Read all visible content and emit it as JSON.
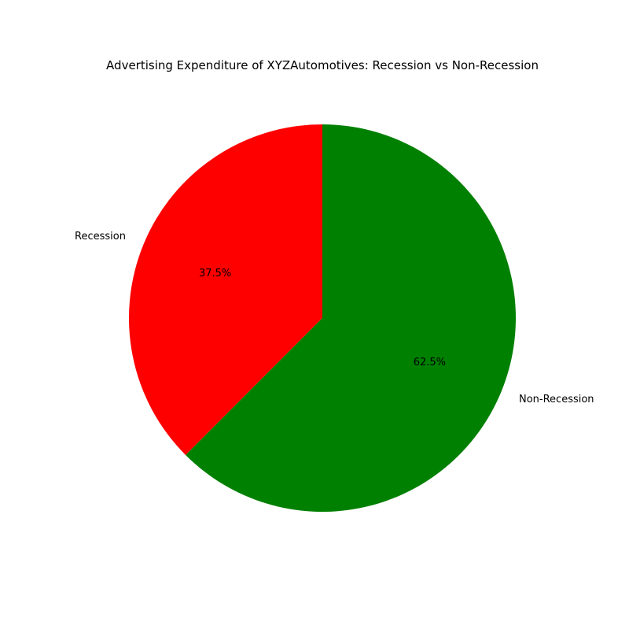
{
  "chart_data": {
    "type": "pie",
    "title": "Advertising Expenditure of XYZAutomotives: Recession vs Non-Recession",
    "categories": [
      "Recession",
      "Non-Recession"
    ],
    "values": [
      37.5,
      62.5
    ],
    "value_labels": [
      "37.5%",
      "62.5%"
    ],
    "colors": [
      "#ff0000",
      "#008000"
    ],
    "start_angle_deg": 90,
    "direction": "counterclockwise",
    "legend": "none"
  }
}
